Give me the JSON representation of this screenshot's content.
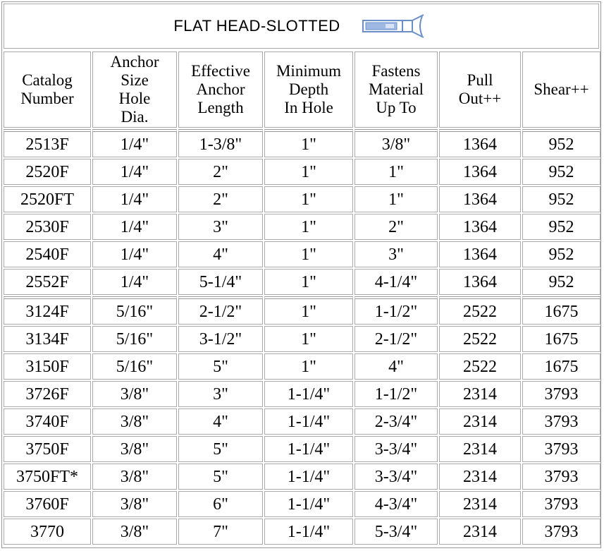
{
  "header": {
    "title": "FLAT HEAD-SLOTTED"
  },
  "table": {
    "columns": [
      [
        "Catalog",
        "Number"
      ],
      [
        "Anchor",
        "Size",
        "Hole",
        "Dia."
      ],
      [
        "Effective",
        "Anchor",
        "Length"
      ],
      [
        "Minimum",
        "Depth",
        "In Hole"
      ],
      [
        "Fastens",
        "Material",
        "Up To"
      ],
      [
        "Pull",
        "Out++"
      ],
      [
        "Shear++"
      ]
    ],
    "groups": [
      [
        [
          "2513F",
          "1/4\"",
          "1-3/8\"",
          "1\"",
          "3/8\"",
          "1364",
          "952"
        ],
        [
          "2520F",
          "1/4\"",
          "2\"",
          "1\"",
          "1\"",
          "1364",
          "952"
        ],
        [
          "2520FT",
          "1/4\"",
          "2\"",
          "1\"",
          "1\"",
          "1364",
          "952"
        ],
        [
          "2530F",
          "1/4\"",
          "3\"",
          "1\"",
          "2\"",
          "1364",
          "952"
        ],
        [
          "2540F",
          "1/4\"",
          "4\"",
          "1\"",
          "3\"",
          "1364",
          "952"
        ],
        [
          "2552F",
          "1/4\"",
          "5-1/4\"",
          "1\"",
          "4-1/4\"",
          "1364",
          "952"
        ]
      ],
      [
        [
          "3124F",
          "5/16\"",
          "2-1/2\"",
          "1\"",
          "1-1/2\"",
          "2522",
          "1675"
        ],
        [
          "3134F",
          "5/16\"",
          "3-1/2\"",
          "1\"",
          "2-1/2\"",
          "2522",
          "1675"
        ],
        [
          "3150F",
          "5/16\"",
          "5\"",
          "1\"",
          "4\"",
          "2522",
          "1675"
        ],
        [
          "3726F",
          "3/8\"",
          "3\"",
          "1-1/4\"",
          "1-1/2\"",
          "2314",
          "3793"
        ],
        [
          "3740F",
          "3/8\"",
          "4\"",
          "1-1/4\"",
          "2-3/4\"",
          "2314",
          "3793"
        ],
        [
          "3750F",
          "3/8\"",
          "5\"",
          "1-1/4\"",
          "3-3/4\"",
          "2314",
          "3793"
        ],
        [
          "3750FT*",
          "3/8\"",
          "5\"",
          "1-1/4\"",
          "3-3/4\"",
          "2314",
          "3793"
        ],
        [
          "3760F",
          "3/8\"",
          "6\"",
          "1-1/4\"",
          "4-3/4\"",
          "2314",
          "3793"
        ],
        [
          "3770",
          "3/8\"",
          "7\"",
          "1-1/4\"",
          "5-3/4\"",
          "2314",
          "3793"
        ]
      ]
    ]
  }
}
